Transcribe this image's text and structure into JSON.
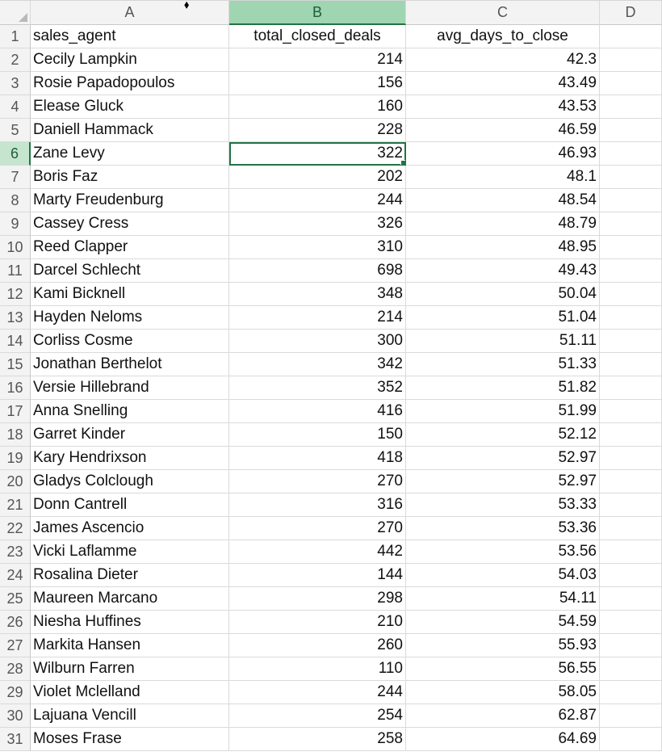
{
  "columns": [
    "A",
    "B",
    "C",
    "D"
  ],
  "selected_column": "B",
  "active_cell": {
    "row": 6,
    "col": "B"
  },
  "header": {
    "row_number": "1",
    "sales_agent": "sales_agent",
    "total_closed_deals": "total_closed_deals",
    "avg_days_to_close": "avg_days_to_close"
  },
  "rows": [
    {
      "n": "2",
      "agent": "Cecily Lampkin",
      "deals": "214",
      "days": "42.3"
    },
    {
      "n": "3",
      "agent": "Rosie Papadopoulos",
      "deals": "156",
      "days": "43.49"
    },
    {
      "n": "4",
      "agent": "Elease Gluck",
      "deals": "160",
      "days": "43.53"
    },
    {
      "n": "5",
      "agent": "Daniell Hammack",
      "deals": "228",
      "days": "46.59"
    },
    {
      "n": "6",
      "agent": "Zane Levy",
      "deals": "322",
      "days": "46.93"
    },
    {
      "n": "7",
      "agent": "Boris Faz",
      "deals": "202",
      "days": "48.1"
    },
    {
      "n": "8",
      "agent": "Marty Freudenburg",
      "deals": "244",
      "days": "48.54"
    },
    {
      "n": "9",
      "agent": "Cassey Cress",
      "deals": "326",
      "days": "48.79"
    },
    {
      "n": "10",
      "agent": "Reed Clapper",
      "deals": "310",
      "days": "48.95"
    },
    {
      "n": "11",
      "agent": "Darcel Schlecht",
      "deals": "698",
      "days": "49.43"
    },
    {
      "n": "12",
      "agent": "Kami Bicknell",
      "deals": "348",
      "days": "50.04"
    },
    {
      "n": "13",
      "agent": "Hayden Neloms",
      "deals": "214",
      "days": "51.04"
    },
    {
      "n": "14",
      "agent": "Corliss Cosme",
      "deals": "300",
      "days": "51.11"
    },
    {
      "n": "15",
      "agent": "Jonathan Berthelot",
      "deals": "342",
      "days": "51.33"
    },
    {
      "n": "16",
      "agent": "Versie Hillebrand",
      "deals": "352",
      "days": "51.82"
    },
    {
      "n": "17",
      "agent": "Anna Snelling",
      "deals": "416",
      "days": "51.99"
    },
    {
      "n": "18",
      "agent": "Garret Kinder",
      "deals": "150",
      "days": "52.12"
    },
    {
      "n": "19",
      "agent": "Kary Hendrixson",
      "deals": "418",
      "days": "52.97"
    },
    {
      "n": "20",
      "agent": "Gladys Colclough",
      "deals": "270",
      "days": "52.97"
    },
    {
      "n": "21",
      "agent": "Donn Cantrell",
      "deals": "316",
      "days": "53.33"
    },
    {
      "n": "22",
      "agent": "James Ascencio",
      "deals": "270",
      "days": "53.36"
    },
    {
      "n": "23",
      "agent": "Vicki Laflamme",
      "deals": "442",
      "days": "53.56"
    },
    {
      "n": "24",
      "agent": "Rosalina Dieter",
      "deals": "144",
      "days": "54.03"
    },
    {
      "n": "25",
      "agent": "Maureen Marcano",
      "deals": "298",
      "days": "54.11"
    },
    {
      "n": "26",
      "agent": "Niesha Huffines",
      "deals": "210",
      "days": "54.59"
    },
    {
      "n": "27",
      "agent": "Markita Hansen",
      "deals": "260",
      "days": "55.93"
    },
    {
      "n": "28",
      "agent": "Wilburn Farren",
      "deals": "110",
      "days": "56.55"
    },
    {
      "n": "29",
      "agent": "Violet Mclelland",
      "deals": "244",
      "days": "58.05"
    },
    {
      "n": "30",
      "agent": "Lajuana Vencill",
      "deals": "254",
      "days": "62.87"
    },
    {
      "n": "31",
      "agent": "Moses Frase",
      "deals": "258",
      "days": "64.69"
    }
  ],
  "colors": {
    "accent": "#217346",
    "selected_header": "#9fd5b1",
    "selected_row_header": "#c6e5cf",
    "gridline": "#dadada",
    "header_bg": "#f3f3f3"
  }
}
